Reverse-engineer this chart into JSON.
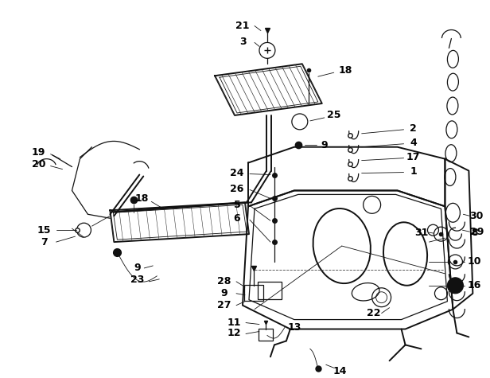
{
  "bg_color": "#ffffff",
  "line_color": "#111111",
  "text_color": "#000000",
  "lw_main": 1.4,
  "lw_med": 0.9,
  "lw_thin": 0.6,
  "figsize": [
    6.16,
    4.75
  ],
  "dpi": 100
}
